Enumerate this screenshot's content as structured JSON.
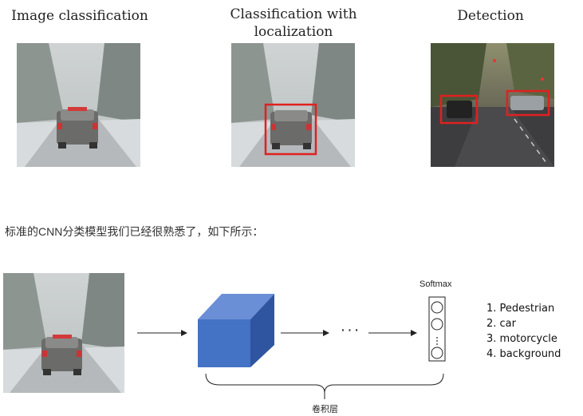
{
  "panels": [
    {
      "title": "Image classification"
    },
    {
      "title": "Classification with localization"
    },
    {
      "title": "Detection"
    }
  ],
  "caption": "标准的CNN分类模型我们已经很熟悉了，如下所示：",
  "diagram": {
    "softmax_label": "Softmax",
    "ellipsis": "· · ·",
    "conv_label": "卷积层",
    "classes": [
      "1. Pedestrian",
      "2. car",
      "3. motorcycle",
      "4. background"
    ]
  },
  "colors": {
    "box": "#e02020",
    "cube_front": "#4472c4",
    "cube_top": "#6a8fd6",
    "cube_side": "#2f55a0"
  }
}
